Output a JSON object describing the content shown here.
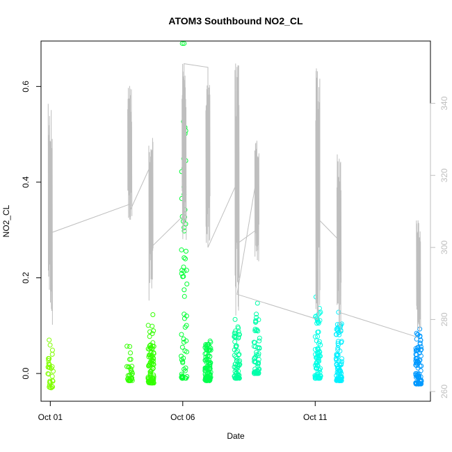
{
  "chart_data": {
    "type": "scatter",
    "title": "ATOM3 Southbound NO2_CL",
    "xlabel": "Date",
    "ylabel": "NO2_CL",
    "x_ticks": [
      "Oct 01",
      "Oct 06",
      "Oct 11"
    ],
    "x_tick_days": [
      1,
      6,
      11
    ],
    "xlim_days": [
      0.65,
      15.35
    ],
    "y_ticks": [
      0.0,
      0.2,
      0.4,
      0.6
    ],
    "ylim": [
      -0.058,
      0.695
    ],
    "y2_ticks": [
      260,
      280,
      300,
      320,
      340
    ],
    "y2lim": [
      257.3,
      357.3
    ],
    "y2_color": "#bebebe",
    "series": [
      {
        "values": [
          {
            "day": 1.0,
            "min": -0.03,
            "max": 0.07,
            "color": "#80ff00",
            "n": 30
          },
          {
            "day": 4.0,
            "min": -0.015,
            "max": 0.057,
            "color": "#33ff00",
            "n": 30
          },
          {
            "day": 4.8,
            "min": -0.02,
            "max": 0.123,
            "color": "#33ff00",
            "n": 90
          },
          {
            "day": 6.05,
            "min": -0.01,
            "max": 0.69,
            "color": "#00ff33",
            "n": 60,
            "outliers": [
              0.69,
              0.39,
              0.305,
              0.298,
              0.242,
              0.203,
              0.175,
              0.115
            ]
          },
          {
            "day": 6.95,
            "min": -0.015,
            "max": 0.068,
            "color": "#00ff4d",
            "n": 100
          },
          {
            "day": 8.05,
            "min": -0.01,
            "max": 0.113,
            "color": "#00ff99",
            "n": 70
          },
          {
            "day": 8.8,
            "min": 0.0,
            "max": 0.147,
            "color": "#00ffaa",
            "n": 60
          },
          {
            "day": 11.1,
            "min": -0.01,
            "max": 0.16,
            "color": "#00ffe6",
            "n": 80
          },
          {
            "day": 11.9,
            "min": -0.015,
            "max": 0.128,
            "color": "#00f0ff",
            "n": 90
          },
          {
            "day": 14.9,
            "min": -0.022,
            "max": 0.093,
            "color": "#0099ff",
            "n": 90
          }
        ]
      },
      {
        "axis": "right",
        "color": "#bebebe",
        "values": [
          {
            "day": 1.0,
            "min": 278,
            "max": 342
          },
          {
            "day": 4.0,
            "min": 304,
            "max": 345
          },
          {
            "day": 4.8,
            "min": 284,
            "max": 334
          },
          {
            "day": 6.05,
            "min": 302,
            "max": 351
          },
          {
            "day": 6.95,
            "min": 300,
            "max": 347
          },
          {
            "day": 8.05,
            "min": 281,
            "max": 353
          },
          {
            "day": 8.8,
            "min": 296,
            "max": 330
          },
          {
            "day": 11.1,
            "min": 281,
            "max": 352
          },
          {
            "day": 11.9,
            "min": 276,
            "max": 328
          },
          {
            "day": 14.9,
            "min": 276,
            "max": 308
          }
        ],
        "connectors": [
          [
            1.0,
            304
          ],
          [
            4.0,
            312
          ],
          [
            4.0,
            310
          ],
          [
            4.8,
            323
          ],
          [
            4.8,
            300
          ],
          [
            6.05,
            309
          ],
          [
            6.05,
            351
          ],
          [
            6.95,
            350
          ],
          [
            6.95,
            300
          ],
          [
            8.05,
            318
          ],
          [
            8.05,
            301
          ],
          [
            8.8,
            305
          ],
          [
            8.8,
            320
          ],
          [
            8.05,
            287
          ],
          [
            11.1,
            280
          ],
          [
            11.1,
            308
          ],
          [
            11.9,
            302
          ],
          [
            11.9,
            282
          ],
          [
            14.9,
            275
          ]
        ]
      }
    ],
    "grid": false
  }
}
